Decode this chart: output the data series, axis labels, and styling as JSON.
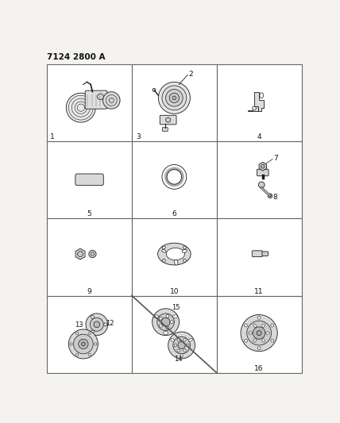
{
  "title": "7124 2800 A",
  "bg_color": "#f5f3ef",
  "cell_bg": "#ffffff",
  "line_color": "#1a1a1a",
  "text_color": "#111111",
  "grid_lw": 0.8,
  "part_lw": 0.6
}
